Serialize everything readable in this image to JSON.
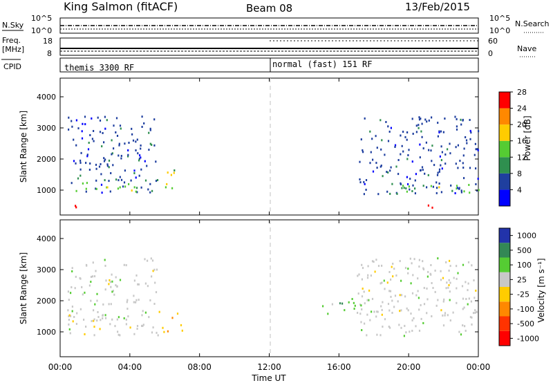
{
  "header": {
    "station": "King Salmon (fitACF)",
    "beam": "Beam 08",
    "date": "13/Feb/2015"
  },
  "strip_labels": {
    "nsky": "N.Sky",
    "nsky_top": "10^5",
    "nsky_bottom": "10^0",
    "nsearch": "N.Search",
    "nsearch_top": "10^5",
    "nsearch_bottom": "10^0",
    "freq": "Freq.",
    "freq_unit": "[MHz]",
    "freq_top": "18",
    "freq_bottom": "8",
    "nave": "Nave",
    "nave_top": "60",
    "nave_bottom": "0",
    "cpid": "CPID",
    "cpid_mode_1": "themis 3300 RF",
    "cpid_mode_2": "normal (fast) 151 RF"
  },
  "chart_data": [
    {
      "type": "heatmap",
      "name": "power",
      "ylabel": "Slant Range [km]",
      "ylim": [
        200,
        4600
      ],
      "yticks": [
        "1000",
        "2000",
        "3000",
        "4000"
      ],
      "xlim": [
        0,
        24
      ],
      "colorbar_label": "Power [dB]",
      "colorbar_ticks": [
        "4",
        "8",
        "12",
        "16",
        "20",
        "24",
        "28"
      ],
      "colors": [
        "#0000ff",
        "#1f3f9f",
        "#2f8f4f",
        "#55cc33",
        "#ffcc00",
        "#ff8800",
        "#ff0000"
      ],
      "regions": [
        {
          "t0": 0.4,
          "t1": 5.6,
          "r0": 900,
          "r1": 3400,
          "level": 1
        },
        {
          "t0": 0.4,
          "t1": 5.3,
          "r0": 950,
          "r1": 1300,
          "level": 3
        },
        {
          "t0": 5.6,
          "t1": 7.0,
          "r0": 1000,
          "r1": 1700,
          "level": 3
        },
        {
          "t0": 0.4,
          "t1": 1.4,
          "r0": 400,
          "r1": 550,
          "level": 6
        },
        {
          "t0": 17.0,
          "t1": 24.0,
          "r0": 900,
          "r1": 3400,
          "level": 1
        },
        {
          "t0": 19.0,
          "t1": 24.0,
          "r0": 950,
          "r1": 1200,
          "level": 3
        },
        {
          "t0": 21.0,
          "t1": 22.3,
          "r0": 400,
          "r1": 550,
          "level": 6
        }
      ]
    },
    {
      "type": "heatmap",
      "name": "velocity",
      "ylabel": "Slant Range [km]",
      "ylim": [
        200,
        4600
      ],
      "yticks": [
        "1000",
        "2000",
        "3000",
        "4000"
      ],
      "xlim": [
        0,
        24
      ],
      "xticks": [
        "00:00",
        "04:00",
        "08:00",
        "12:00",
        "16:00",
        "20:00",
        "00:00"
      ],
      "xlabel": "Time UT",
      "colorbar_label": "Velocity [m s⁻¹]",
      "colorbar_ticks": [
        "1000",
        "500",
        "100",
        "25",
        "-25",
        "-100",
        "-500",
        "-1000"
      ],
      "colors": [
        "#2233aa",
        "#338855",
        "#55cc33",
        "#c8c8c8",
        "#ffcc00",
        "#ff8800",
        "#ff3300",
        "#ff0000"
      ],
      "regions": [
        {
          "t0": 0.4,
          "t1": 5.6,
          "r0": 900,
          "r1": 3400,
          "level": 3
        },
        {
          "t0": 5.6,
          "t1": 7.0,
          "r0": 1000,
          "r1": 1700,
          "level": 4
        },
        {
          "t0": 15.0,
          "t1": 17.0,
          "r0": 1500,
          "r1": 2100,
          "level": 2
        },
        {
          "t0": 17.0,
          "t1": 24.0,
          "r0": 900,
          "r1": 3400,
          "level": 3
        }
      ]
    }
  ]
}
